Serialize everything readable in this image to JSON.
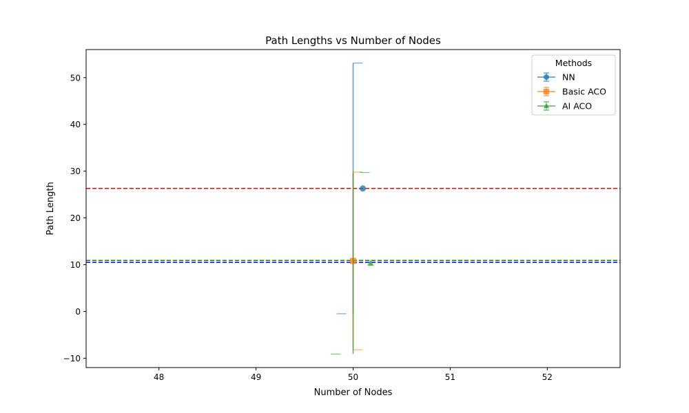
{
  "chart_data": {
    "type": "scatter",
    "title": "Path Lengths vs Number of Nodes",
    "xlabel": "Number of Nodes",
    "ylabel": "Path Length",
    "xlim": [
      47.25,
      52.75
    ],
    "ylim": [
      -12.0,
      56.0
    ],
    "xticks": [
      48,
      49,
      50,
      51,
      52
    ],
    "yticks": [
      -10,
      0,
      10,
      20,
      30,
      40,
      50
    ],
    "grid": false,
    "legend": {
      "title": "Methods",
      "position": "top-right"
    },
    "series": [
      {
        "name": "NN",
        "color": "#1f77b4",
        "marker": "circle",
        "x": 50.1,
        "y": 26.3,
        "yerr": 26.8,
        "hline": 10.5,
        "hline_color": "#0000ff"
      },
      {
        "name": "Basic ACO",
        "color": "#ff7f0e",
        "marker": "square",
        "x": 50.0,
        "y": 10.8,
        "yerr": 19.0,
        "hline": 26.3,
        "hline_color": "#ff0000"
      },
      {
        "name": "AI ACO",
        "color": "#2ca02c",
        "marker": "triangle",
        "x": 50.18,
        "y": 10.3,
        "yerr": 19.4,
        "hline": 10.9,
        "hline_color": "#008000"
      }
    ]
  }
}
